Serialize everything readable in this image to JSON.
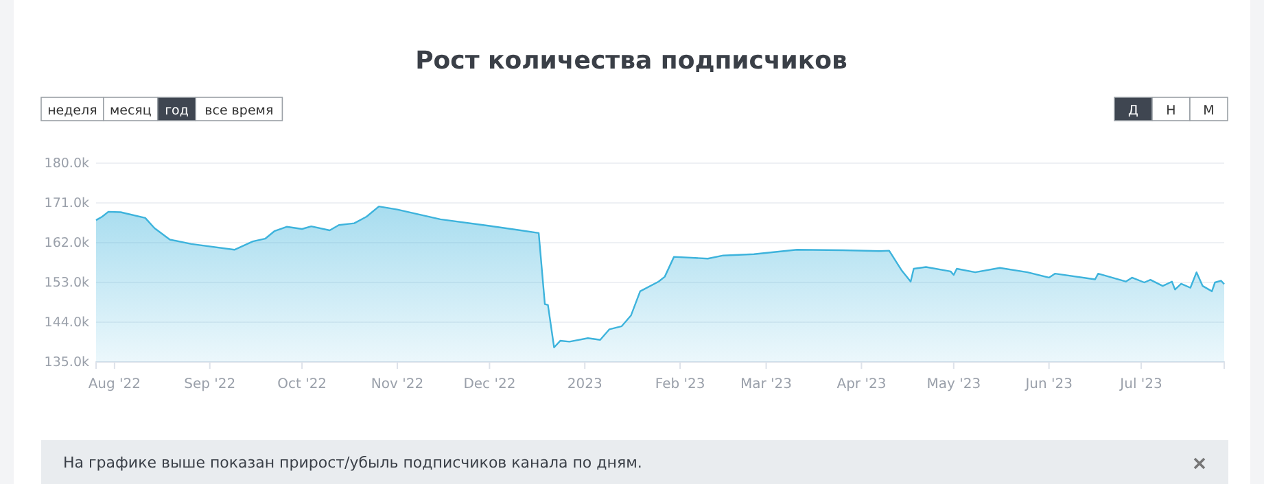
{
  "chart_data": {
    "type": "area",
    "title": "Рост количества подписчиков",
    "x": [
      "2022-07-26",
      "2022-07-28",
      "2022-07-30",
      "2022-08-03",
      "2022-08-11",
      "2022-08-14",
      "2022-08-19",
      "2022-08-26",
      "2022-09-09",
      "2022-09-15",
      "2022-09-19",
      "2022-09-22",
      "2022-09-26",
      "2022-10-01",
      "2022-10-04",
      "2022-10-10",
      "2022-10-13",
      "2022-10-18",
      "2022-10-22",
      "2022-10-26",
      "2022-11-01",
      "2022-11-15",
      "2022-12-01",
      "2022-12-17",
      "2022-12-19",
      "2022-12-20",
      "2022-12-22",
      "2022-12-24",
      "2022-12-27",
      "2023-01-02",
      "2023-01-06",
      "2023-01-09",
      "2023-01-13",
      "2023-01-16",
      "2023-01-19",
      "2023-01-25",
      "2023-01-27",
      "2023-01-30",
      "2023-02-10",
      "2023-02-15",
      "2023-02-25",
      "2023-03-11",
      "2023-03-26",
      "2023-04-07",
      "2023-04-10",
      "2023-04-14",
      "2023-04-17",
      "2023-04-18",
      "2023-04-22",
      "2023-04-30",
      "2023-05-01",
      "2023-05-02",
      "2023-05-08",
      "2023-05-16",
      "2023-05-25",
      "2023-06-01",
      "2023-06-03",
      "2023-06-16",
      "2023-06-17",
      "2023-06-26",
      "2023-06-28",
      "2023-07-02",
      "2023-07-04",
      "2023-07-08",
      "2023-07-11",
      "2023-07-12",
      "2023-07-14",
      "2023-07-17",
      "2023-07-19",
      "2023-07-21",
      "2023-07-24",
      "2023-07-25",
      "2023-07-27",
      "2023-07-28"
    ],
    "series": [
      {
        "color": "#3db3dc",
        "values": [
          167.1,
          167.9,
          169.0,
          168.9,
          167.6,
          165.3,
          162.7,
          161.7,
          160.4,
          162.3,
          162.9,
          164.6,
          165.6,
          165.1,
          165.7,
          164.8,
          166.0,
          166.4,
          167.9,
          170.2,
          169.5,
          167.3,
          165.8,
          164.2,
          148.1,
          147.9,
          138.3,
          139.8,
          139.6,
          140.4,
          140.0,
          142.4,
          143.1,
          145.5,
          151.0,
          153.2,
          154.3,
          158.8,
          158.4,
          159.1,
          159.4,
          160.4,
          160.3,
          160.1,
          160.2,
          155.8,
          153.2,
          156.1,
          156.5,
          155.5,
          154.7,
          156.1,
          155.3,
          156.3,
          155.3,
          154.1,
          155.0,
          153.7,
          155.0,
          153.2,
          154.1,
          153.0,
          153.6,
          152.2,
          153.2,
          151.4,
          152.7,
          151.8,
          155.3,
          152.2,
          151.0,
          153.0,
          153.4,
          152.6
        ]
      }
    ],
    "xlim": [
      "2022-07-26",
      "2023-07-28"
    ],
    "xticks": [
      {
        "value": "2022-08-01",
        "label": "Aug '22"
      },
      {
        "value": "2022-09-01",
        "label": "Sep '22"
      },
      {
        "value": "2022-10-01",
        "label": "Oct '22"
      },
      {
        "value": "2022-11-01",
        "label": "Nov '22"
      },
      {
        "value": "2022-12-01",
        "label": "Dec '22"
      },
      {
        "value": "2023-01-01",
        "label": "2023"
      },
      {
        "value": "2023-02-01",
        "label": "Feb '23"
      },
      {
        "value": "2023-03-01",
        "label": "Mar '23"
      },
      {
        "value": "2023-04-01",
        "label": "Apr '23"
      },
      {
        "value": "2023-05-01",
        "label": "May '23"
      },
      {
        "value": "2023-06-01",
        "label": "Jun '23"
      },
      {
        "value": "2023-07-01",
        "label": "Jul '23"
      }
    ],
    "ylim": [
      135,
      180
    ],
    "yticks": [
      {
        "value": 135,
        "label": "135.0k"
      },
      {
        "value": 144,
        "label": "144.0k"
      },
      {
        "value": 153,
        "label": "153.0k"
      },
      {
        "value": 162,
        "label": "162.0k"
      },
      {
        "value": 171,
        "label": "171.0k"
      },
      {
        "value": 180,
        "label": "180.0k"
      }
    ],
    "grid": "y",
    "marker": "none",
    "annotations": [
      "неделя",
      "месяц",
      "год",
      "все время",
      "Д",
      "Н",
      "М",
      "На графике выше показан прирост/убыль подписчиков канала по дням."
    ]
  }
}
